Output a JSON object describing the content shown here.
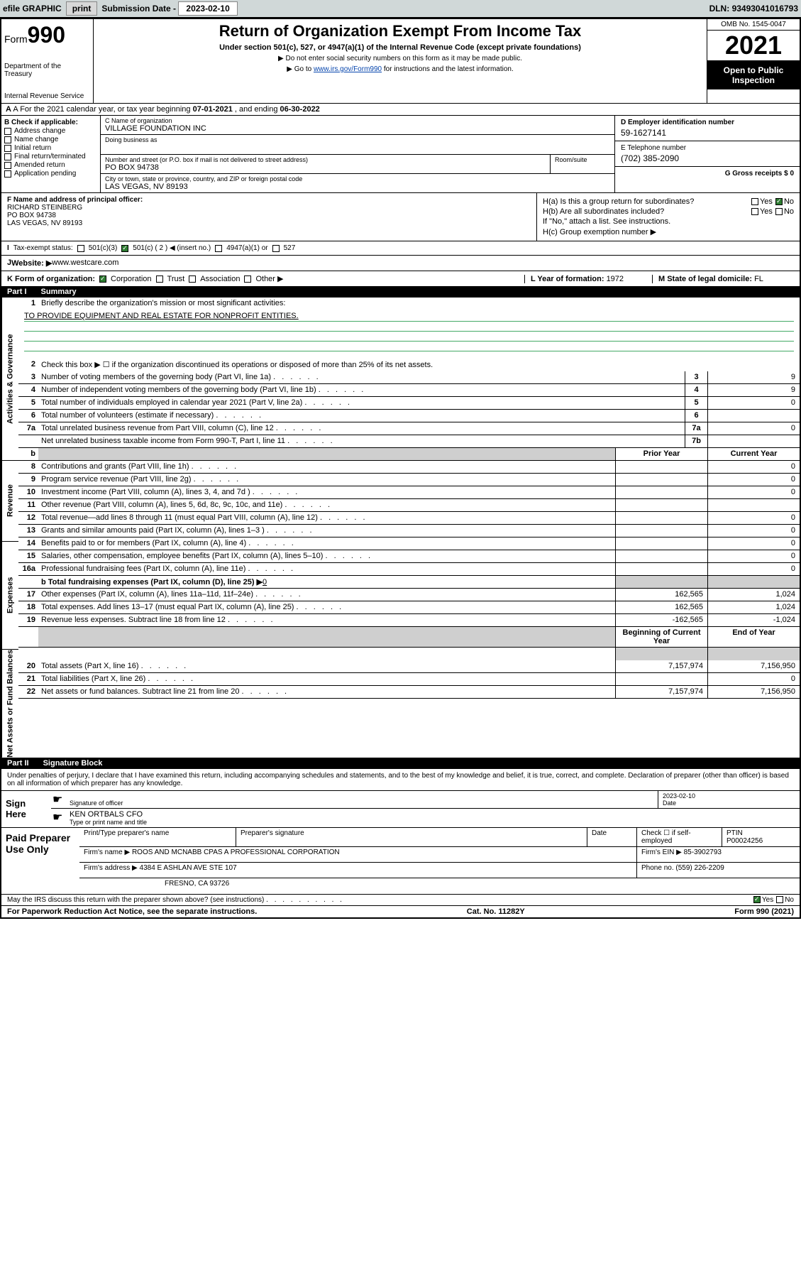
{
  "topbar": {
    "efile_label": "efile GRAPHIC",
    "print_btn": "print",
    "sub_date_label": "Submission Date - ",
    "sub_date": "2023-02-10",
    "dln_label": "DLN: ",
    "dln": "93493041016793"
  },
  "header": {
    "form_word": "Form",
    "form_num": "990",
    "dept": "Department of the Treasury",
    "irs": "Internal Revenue Service",
    "title": "Return of Organization Exempt From Income Tax",
    "subtitle": "Under section 501(c), 527, or 4947(a)(1) of the Internal Revenue Code (except private foundations)",
    "note1": "▶ Do not enter social security numbers on this form as it may be made public.",
    "note2_pre": "▶ Go to ",
    "note2_link": "www.irs.gov/Form990",
    "note2_post": " for instructions and the latest information.",
    "omb": "OMB No. 1545-0047",
    "year": "2021",
    "open1": "Open to Public",
    "open2": "Inspection"
  },
  "row_a": {
    "prefix": "A For the 2021 calendar year, or tax year beginning ",
    "begin": "07-01-2021",
    "mid": " , and ending ",
    "end": "06-30-2022"
  },
  "b": {
    "title": "B Check if applicable:",
    "opts": [
      "Address change",
      "Name change",
      "Initial return",
      "Final return/terminated",
      "Amended return",
      "Application pending"
    ]
  },
  "c": {
    "name_label": "C Name of organization",
    "name": "VILLAGE FOUNDATION INC",
    "dba_label": "Doing business as",
    "dba": "",
    "addr_label": "Number and street (or P.O. box if mail is not delivered to street address)",
    "room_label": "Room/suite",
    "addr": "PO BOX 94738",
    "city_label": "City or town, state or province, country, and ZIP or foreign postal code",
    "city": "LAS VEGAS, NV  89193"
  },
  "d": {
    "label": "D Employer identification number",
    "val": "59-1627141"
  },
  "e": {
    "label": "E Telephone number",
    "val": "(702) 385-2090"
  },
  "g": {
    "label": "G Gross receipts $ ",
    "val": "0"
  },
  "f": {
    "label": "F Name and address of principal officer:",
    "name": "RICHARD STEINBERG",
    "addr1": "PO BOX 94738",
    "addr2": "LAS VEGAS, NV  89193"
  },
  "h": {
    "a_label": "H(a)  Is this a group return for subordinates?",
    "b_label": "H(b)  Are all subordinates included?",
    "b_note": "If \"No,\" attach a list. See instructions.",
    "c_label": "H(c)  Group exemption number ▶",
    "yes": "Yes",
    "no": "No"
  },
  "i": {
    "label": "Tax-exempt status:",
    "opts": [
      "501(c)(3)",
      "501(c) ( 2 ) ◀ (insert no.)",
      "4947(a)(1) or",
      "527"
    ]
  },
  "j": {
    "label": "Website: ▶",
    "val": "www.westcare.com"
  },
  "k": {
    "label": "K Form of organization:",
    "opts": [
      "Corporation",
      "Trust",
      "Association",
      "Other ▶"
    ],
    "l_label": "L Year of formation: ",
    "l_val": "1972",
    "m_label": "M State of legal domicile: ",
    "m_val": "FL"
  },
  "part1": {
    "num": "Part I",
    "title": "Summary"
  },
  "summary": {
    "side1": "Activities & Governance",
    "side2": "Revenue",
    "side3": "Expenses",
    "side4": "Net Assets or Fund Balances",
    "l1_label": "Briefly describe the organization's mission or most significant activities:",
    "l1_text": "TO PROVIDE EQUIPMENT AND REAL ESTATE FOR NONPROFIT ENTITIES.",
    "l2_label": "Check this box ▶ ☐  if the organization discontinued its operations or disposed of more than 25% of its net assets.",
    "lines_gov": [
      {
        "n": "3",
        "t": "Number of voting members of the governing body (Part VI, line 1a)",
        "c": "3",
        "v": "9"
      },
      {
        "n": "4",
        "t": "Number of independent voting members of the governing body (Part VI, line 1b)",
        "c": "4",
        "v": "9"
      },
      {
        "n": "5",
        "t": "Total number of individuals employed in calendar year 2021 (Part V, line 2a)",
        "c": "5",
        "v": "0"
      },
      {
        "n": "6",
        "t": "Total number of volunteers (estimate if necessary)",
        "c": "6",
        "v": ""
      },
      {
        "n": "7a",
        "t": "Total unrelated business revenue from Part VIII, column (C), line 12",
        "c": "7a",
        "v": "0"
      },
      {
        "n": "",
        "t": "Net unrelated business taxable income from Form 990-T, Part I, line 11",
        "c": "7b",
        "v": ""
      }
    ],
    "hdr_b": "b",
    "hdr_prior": "Prior Year",
    "hdr_curr": "Current Year",
    "lines_rev": [
      {
        "n": "8",
        "t": "Contributions and grants (Part VIII, line 1h)",
        "p": "",
        "c": "0"
      },
      {
        "n": "9",
        "t": "Program service revenue (Part VIII, line 2g)",
        "p": "",
        "c": "0"
      },
      {
        "n": "10",
        "t": "Investment income (Part VIII, column (A), lines 3, 4, and 7d )",
        "p": "",
        "c": "0"
      },
      {
        "n": "11",
        "t": "Other revenue (Part VIII, column (A), lines 5, 6d, 8c, 9c, 10c, and 11e)",
        "p": "",
        "c": ""
      },
      {
        "n": "12",
        "t": "Total revenue—add lines 8 through 11 (must equal Part VIII, column (A), line 12)",
        "p": "",
        "c": "0"
      }
    ],
    "lines_exp": [
      {
        "n": "13",
        "t": "Grants and similar amounts paid (Part IX, column (A), lines 1–3 )",
        "p": "",
        "c": "0"
      },
      {
        "n": "14",
        "t": "Benefits paid to or for members (Part IX, column (A), line 4)",
        "p": "",
        "c": "0"
      },
      {
        "n": "15",
        "t": "Salaries, other compensation, employee benefits (Part IX, column (A), lines 5–10)",
        "p": "",
        "c": "0"
      },
      {
        "n": "16a",
        "t": "Professional fundraising fees (Part IX, column (A), line 11e)",
        "p": "",
        "c": "0"
      }
    ],
    "l16b_pre": "b   Total fundraising expenses (Part IX, column (D), line 25) ▶",
    "l16b_val": "0",
    "lines_exp2": [
      {
        "n": "17",
        "t": "Other expenses (Part IX, column (A), lines 11a–11d, 11f–24e)",
        "p": "162,565",
        "c": "1,024"
      },
      {
        "n": "18",
        "t": "Total expenses. Add lines 13–17 (must equal Part IX, column (A), line 25)",
        "p": "162,565",
        "c": "1,024"
      },
      {
        "n": "19",
        "t": "Revenue less expenses. Subtract line 18 from line 12",
        "p": "-162,565",
        "c": "-1,024"
      }
    ],
    "hdr_beg": "Beginning of Current Year",
    "hdr_end": "End of Year",
    "lines_net": [
      {
        "n": "20",
        "t": "Total assets (Part X, line 16)",
        "p": "7,157,974",
        "c": "7,156,950"
      },
      {
        "n": "21",
        "t": "Total liabilities (Part X, line 26)",
        "p": "",
        "c": "0"
      },
      {
        "n": "22",
        "t": "Net assets or fund balances. Subtract line 21 from line 20",
        "p": "7,157,974",
        "c": "7,156,950"
      }
    ]
  },
  "part2": {
    "num": "Part II",
    "title": "Signature Block"
  },
  "sig": {
    "intro": "Under penalties of perjury, I declare that I have examined this return, including accompanying schedules and statements, and to the best of my knowledge and belief, it is true, correct, and complete. Declaration of preparer (other than officer) is based on all information of which preparer has any knowledge.",
    "sign_here": "Sign Here",
    "sig_officer": "Signature of officer",
    "date_label": "Date",
    "date_val": "2023-02-10",
    "name_title": "KEN ORTBALS CFO",
    "type_label": "Type or print name and title"
  },
  "prep": {
    "title": "Paid Preparer Use Only",
    "h_name": "Print/Type preparer's name",
    "h_sig": "Preparer's signature",
    "h_date": "Date",
    "h_check": "Check ☐ if self-employed",
    "h_ptin": "PTIN",
    "ptin": "P00024256",
    "firm_name_label": "Firm's name    ▶ ",
    "firm_name": "ROOS AND MCNABB CPAS A PROFESSIONAL CORPORATION",
    "firm_ein_label": "Firm's EIN ▶ ",
    "firm_ein": "85-3902793",
    "firm_addr_label": "Firm's address ▶ ",
    "firm_addr1": "4384 E ASHLAN AVE STE 107",
    "firm_addr2": "FRESNO, CA  93726",
    "phone_label": "Phone no. ",
    "phone": "(559) 226-2209"
  },
  "footer": {
    "discuss": "May the IRS discuss this return with the preparer shown above? (see instructions)",
    "yes": "Yes",
    "no": "No",
    "paperwork": "For Paperwork Reduction Act Notice, see the separate instructions.",
    "cat": "Cat. No. 11282Y",
    "form": "Form 990 (2021)"
  }
}
